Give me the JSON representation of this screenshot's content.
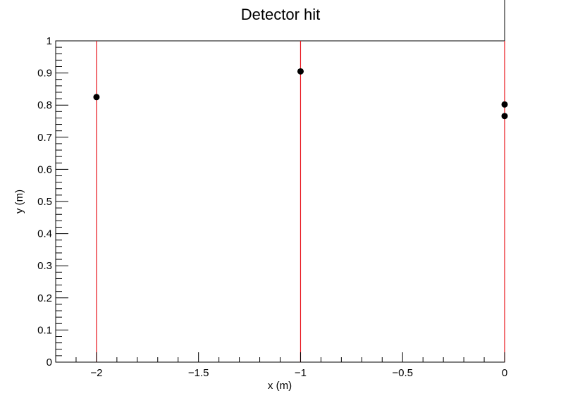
{
  "chart_data": {
    "type": "scatter",
    "title": "Detector hit",
    "xlabel": "x (m)",
    "ylabel": "y (m)",
    "xlim": [
      -2.2,
      0.0
    ],
    "ylim": [
      0,
      1
    ],
    "grid": false,
    "x_major_ticks": [
      -2,
      -1.5,
      -1,
      -0.5,
      0
    ],
    "x_tick_labels": [
      "−2",
      "−1.5",
      "−1",
      "−0.5",
      "0"
    ],
    "y_major_ticks": [
      0,
      0.1,
      0.2,
      0.3,
      0.4,
      0.5,
      0.6,
      0.7,
      0.8,
      0.9,
      1
    ],
    "y_tick_labels": [
      "0",
      "0.1",
      "0.2",
      "0.3",
      "0.4",
      "0.5",
      "0.6",
      "0.7",
      "0.8",
      "0.9",
      "1"
    ],
    "detector_lines_x": [
      -2,
      -1,
      0
    ],
    "detector_line_color": "#e8141c",
    "points": [
      {
        "x": -2,
        "y": 0.825
      },
      {
        "x": -1,
        "y": 0.905
      },
      {
        "x": 0,
        "y": 0.802
      },
      {
        "x": 0,
        "y": 0.766
      }
    ],
    "point_color": "#000000"
  }
}
